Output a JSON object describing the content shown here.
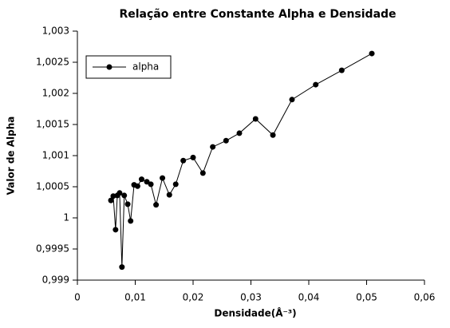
{
  "chart_data": {
    "type": "line",
    "title": "Relação entre Constante Alpha e Densidade",
    "x_label": "Densidade(Å⁻³)",
    "y_label": "Valor de Alpha",
    "x": [
      0.0058,
      0.0062,
      0.0066,
      0.0069,
      0.0073,
      0.0077,
      0.0081,
      0.0087,
      0.0092,
      0.0098,
      0.0104,
      0.0111,
      0.012,
      0.0127,
      0.0136,
      0.0147,
      0.0159,
      0.017,
      0.0183,
      0.02,
      0.0217,
      0.0234,
      0.0257,
      0.028,
      0.0308,
      0.0338,
      0.0371,
      0.0412,
      0.0457,
      0.0509
    ],
    "series": [
      {
        "name": "alpha",
        "color": "#000000",
        "values": [
          1.00028,
          1.00035,
          0.99981,
          1.00036,
          1.0004,
          0.99921,
          1.00036,
          1.00022,
          0.99995,
          1.00053,
          1.00051,
          1.00062,
          1.00058,
          1.00054,
          1.00021,
          1.00064,
          1.00037,
          1.00054,
          1.00092,
          1.00097,
          1.00072,
          1.00114,
          1.00124,
          1.00136,
          1.00159,
          1.00133,
          1.0019,
          1.00214,
          1.00237,
          1.00264
        ]
      }
    ],
    "xlim": [
      0,
      0.06
    ],
    "xticks": [
      0,
      {
        "value": 0.01,
        "label": "0,01"
      },
      {
        "value": 0.02,
        "label": "0,02"
      },
      {
        "value": 0.03,
        "label": "0,03"
      },
      {
        "value": 0.04,
        "label": "0,04"
      },
      {
        "value": 0.05,
        "label": "0,05"
      },
      {
        "value": 0.06,
        "label": "0,06"
      }
    ],
    "ylim": [
      0.999,
      1.003
    ],
    "yticks": [
      {
        "value": 0.999,
        "label": "0,999"
      },
      {
        "value": 0.9995,
        "label": "0,9995"
      },
      1,
      {
        "value": 1.0005,
        "label": "1,0005"
      },
      {
        "value": 1.001,
        "label": "1,001"
      },
      {
        "value": 1.0015,
        "label": "1,0015"
      },
      {
        "value": 1.002,
        "label": "1,002"
      },
      {
        "value": 1.0025,
        "label": "1,0025"
      },
      {
        "value": 1.003,
        "label": "1,003"
      }
    ],
    "grid": false,
    "legend": "upper left"
  }
}
